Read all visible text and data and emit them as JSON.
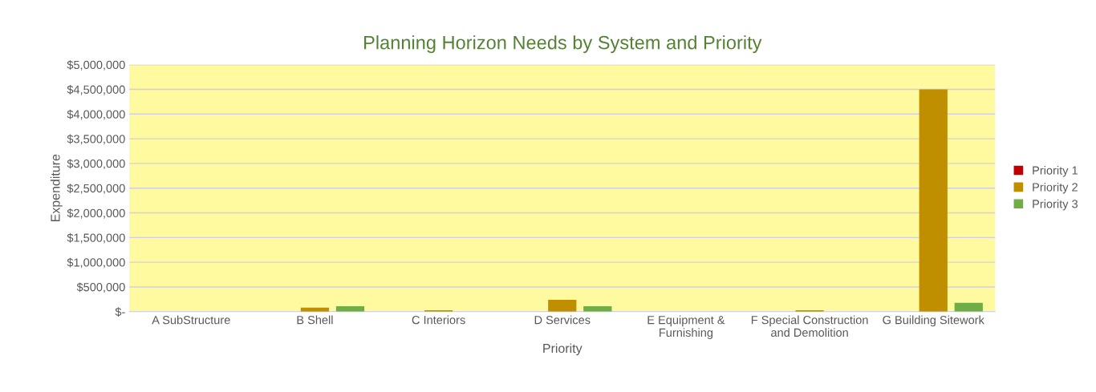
{
  "chart_data": {
    "type": "bar",
    "title": "Planning Horizon Needs by System and Priority",
    "xlabel": "Priority",
    "ylabel": "Expenditure",
    "categories": [
      "A SubStructure",
      "B Shell",
      "C Interiors",
      "D Services",
      "E Equipment &\nFurnishing",
      "F Special Construction\nand Demolition",
      "G Building Sitework"
    ],
    "series": [
      {
        "name": "Priority 1",
        "color": "#c00000",
        "values": [
          0,
          0,
          0,
          0,
          0,
          0,
          0
        ]
      },
      {
        "name": "Priority 2",
        "color": "#bf8f00",
        "values": [
          0,
          80000,
          30000,
          240000,
          0,
          30000,
          4500000
        ]
      },
      {
        "name": "Priority 3",
        "color": "#70ad47",
        "values": [
          0,
          110000,
          0,
          110000,
          0,
          0,
          180000
        ]
      }
    ],
    "ylim": [
      0,
      5000000
    ],
    "yticks": [
      {
        "value": 0,
        "label": "$-"
      },
      {
        "value": 500000,
        "label": "$500,000"
      },
      {
        "value": 1000000,
        "label": "$1,000,000"
      },
      {
        "value": 1500000,
        "label": "$1,500,000"
      },
      {
        "value": 2000000,
        "label": "$2,000,000"
      },
      {
        "value": 2500000,
        "label": "$2,500,000"
      },
      {
        "value": 3000000,
        "label": "$3,000,000"
      },
      {
        "value": 3500000,
        "label": "$3,500,000"
      },
      {
        "value": 4000000,
        "label": "$4,000,000"
      },
      {
        "value": 4500000,
        "label": "$4,500,000"
      },
      {
        "value": 5000000,
        "label": "$5,000,000"
      }
    ],
    "grid": "y",
    "legend": "right"
  }
}
